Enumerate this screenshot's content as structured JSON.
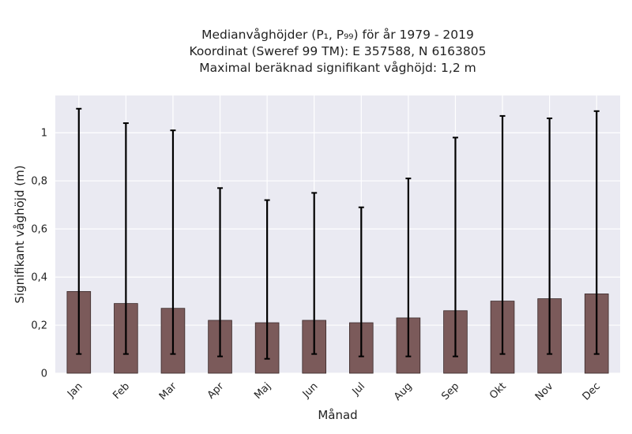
{
  "chart_data": {
    "type": "bar",
    "title_lines": [
      "Medianvåghöjder (P₁, P₉₉) för år 1979 - 2019",
      "Koordinat (Sweref 99 TM): E 357588, N 6163805",
      "Maximal beräknad signifikant våghöjd: 1,2 m"
    ],
    "xlabel": "Månad",
    "ylabel": "Signifikant våghöjd (m)",
    "categories": [
      "Jan",
      "Feb",
      "Mar",
      "Apr",
      "Maj",
      "Jun",
      "Jul",
      "Aug",
      "Sep",
      "Okt",
      "Nov",
      "Dec"
    ],
    "values": [
      0.34,
      0.29,
      0.27,
      0.22,
      0.21,
      0.22,
      0.21,
      0.23,
      0.26,
      0.3,
      0.31,
      0.33
    ],
    "error_low": [
      0.08,
      0.08,
      0.08,
      0.07,
      0.06,
      0.08,
      0.07,
      0.07,
      0.07,
      0.08,
      0.08,
      0.08
    ],
    "error_high": [
      1.1,
      1.04,
      1.01,
      0.77,
      0.72,
      0.75,
      0.69,
      0.81,
      0.98,
      1.07,
      1.06,
      1.09
    ],
    "yticks": [
      "0",
      "0,2",
      "0,4",
      "0,6",
      "0,8",
      "1"
    ],
    "ytick_values": [
      0,
      0.2,
      0.4,
      0.6,
      0.8,
      1.0
    ],
    "ylim": [
      0,
      1.155
    ],
    "grid": true,
    "colors": {
      "bar": "#7b5a5a",
      "bar_edge": "#3a2a2a",
      "error": "#000000",
      "plot_bg": "#eaeaf2",
      "grid": "#ffffff"
    }
  }
}
